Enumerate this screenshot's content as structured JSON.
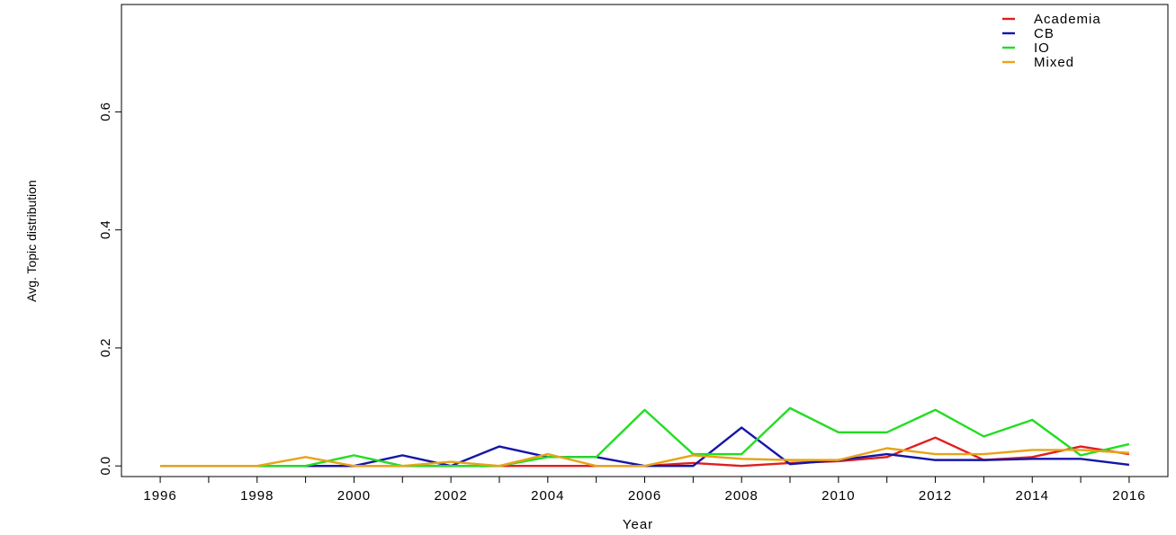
{
  "chart_data": {
    "type": "line",
    "title": "",
    "xlabel": "Year",
    "ylabel": "Avg. Topic distribution",
    "x": [
      1996,
      1997,
      1998,
      1999,
      2000,
      2001,
      2002,
      2003,
      2004,
      2005,
      2006,
      2007,
      2008,
      2009,
      2010,
      2011,
      2012,
      2013,
      2014,
      2015,
      2016
    ],
    "x_tick_labels": [
      "1996",
      "1998",
      "2000",
      "2002",
      "2004",
      "2006",
      "2008",
      "2010",
      "2012",
      "2014",
      "2016"
    ],
    "x_tick_values": [
      1996,
      1998,
      2000,
      2002,
      2004,
      2006,
      2008,
      2010,
      2012,
      2014,
      2016
    ],
    "y_tick_labels": [
      "0.0",
      "0.2",
      "0.4",
      "0.6"
    ],
    "y_tick_values": [
      0.0,
      0.2,
      0.4,
      0.6
    ],
    "xlim": [
      1995.2,
      2016.8
    ],
    "ylim": [
      -0.018,
      0.782
    ],
    "grid": false,
    "legend_position": "top-right",
    "series": [
      {
        "name": "Academia",
        "color": "#df1f1f",
        "values": [
          0,
          0,
          0,
          0,
          0,
          0,
          0,
          0,
          0,
          0,
          0,
          0.005,
          0,
          0.005,
          0.008,
          0.015,
          0.048,
          0.01,
          0.015,
          0.033,
          0.02
        ]
      },
      {
        "name": "CB",
        "color": "#1515a8",
        "values": [
          0,
          0,
          0,
          0,
          0,
          0.018,
          0,
          0.033,
          0.015,
          0.015,
          0,
          0,
          0.065,
          0.003,
          0.01,
          0.02,
          0.01,
          0.01,
          0.012,
          0.012,
          0.002
        ]
      },
      {
        "name": "IO",
        "color": "#22dd22",
        "values": [
          0,
          0,
          0,
          0,
          0.018,
          0,
          0,
          0,
          0.015,
          0.015,
          0.095,
          0.02,
          0.02,
          0.098,
          0.057,
          0.057,
          0.095,
          0.05,
          0.078,
          0.018,
          0.037
        ]
      },
      {
        "name": "Mixed",
        "color": "#e8a317",
        "values": [
          0,
          0,
          0,
          0.015,
          0,
          0,
          0.007,
          0,
          0.02,
          0,
          0,
          0.018,
          0.012,
          0.01,
          0.01,
          0.03,
          0.02,
          0.02,
          0.027,
          0.027,
          0.022
        ]
      }
    ]
  }
}
